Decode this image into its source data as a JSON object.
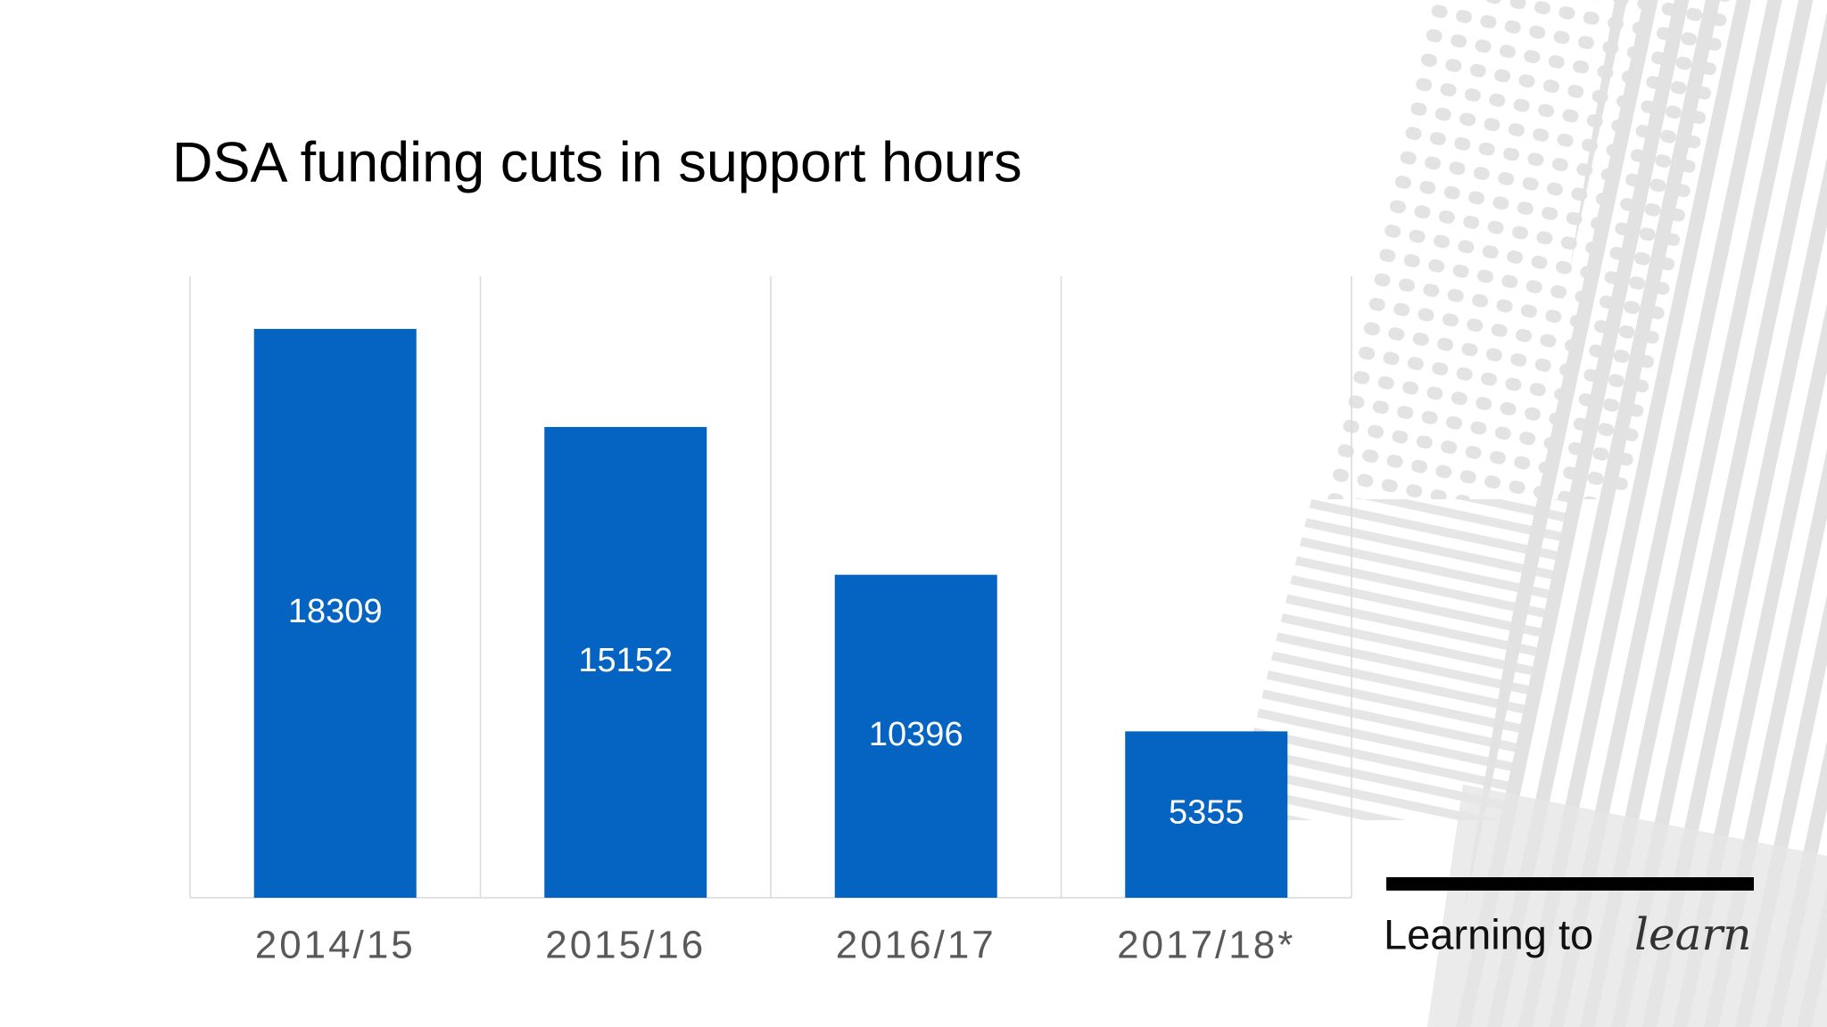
{
  "chart_data": {
    "type": "bar",
    "title": "DSA funding cuts in support hours",
    "categories": [
      "2014/15",
      "2015/16",
      "2016/17",
      "2017/18*"
    ],
    "values": [
      18309,
      15152,
      10396,
      5355
    ],
    "color": "#0563c1",
    "ylim": [
      0,
      20000
    ]
  },
  "branding": {
    "text": "Learning to",
    "script": "learn"
  }
}
